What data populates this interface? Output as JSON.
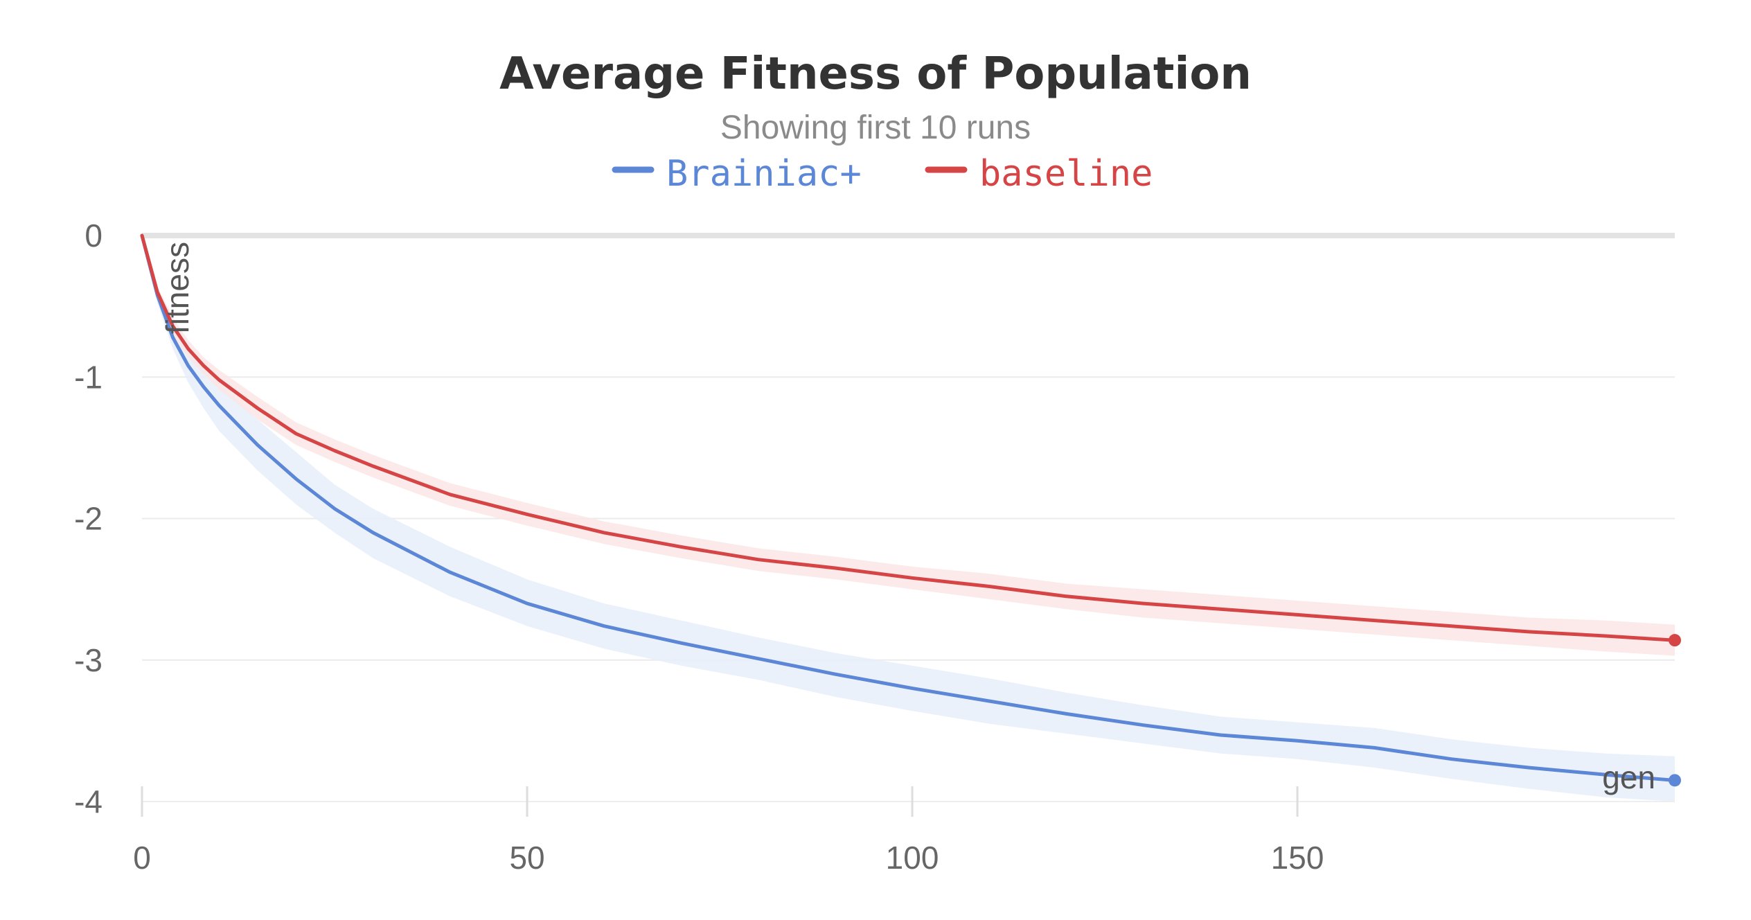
{
  "chart_data": {
    "type": "line",
    "title": "Average Fitness of Population",
    "subtitle": "Showing first 10 runs",
    "xlabel": "gen",
    "ylabel": "fitness",
    "xlim": [
      0,
      199
    ],
    "ylim": [
      -4,
      0
    ],
    "x_ticks": [
      0,
      50,
      100,
      150
    ],
    "y_ticks": [
      0,
      -1,
      -2,
      -3,
      -4
    ],
    "x_tick_labels": [
      "0",
      "50",
      "100",
      "150"
    ],
    "y_tick_labels": [
      "0",
      "-1",
      "-2",
      "-3",
      "-4"
    ],
    "grid": true,
    "legend_position": "top-center",
    "x": [
      0,
      2,
      4,
      6,
      8,
      10,
      15,
      20,
      25,
      30,
      40,
      50,
      60,
      70,
      80,
      90,
      100,
      110,
      120,
      130,
      140,
      150,
      160,
      170,
      180,
      190,
      199
    ],
    "series": [
      {
        "name": "Brainiac+",
        "color": "#5b87d6",
        "band_color": "#e8effa",
        "values": [
          0,
          -0.42,
          -0.72,
          -0.92,
          -1.07,
          -1.2,
          -1.48,
          -1.72,
          -1.93,
          -2.1,
          -2.38,
          -2.6,
          -2.76,
          -2.88,
          -2.99,
          -3.1,
          -3.2,
          -3.29,
          -3.38,
          -3.46,
          -3.53,
          -3.57,
          -3.62,
          -3.7,
          -3.76,
          -3.81,
          -3.85
        ],
        "lower": [
          0,
          -0.48,
          -0.8,
          -1.04,
          -1.22,
          -1.38,
          -1.66,
          -1.9,
          -2.1,
          -2.28,
          -2.55,
          -2.76,
          -2.92,
          -3.04,
          -3.14,
          -3.26,
          -3.36,
          -3.45,
          -3.52,
          -3.59,
          -3.66,
          -3.7,
          -3.76,
          -3.84,
          -3.91,
          -3.97,
          -4.0
        ],
        "upper": [
          0,
          -0.36,
          -0.63,
          -0.8,
          -0.93,
          -1.04,
          -1.3,
          -1.53,
          -1.76,
          -1.93,
          -2.2,
          -2.43,
          -2.6,
          -2.72,
          -2.84,
          -2.95,
          -3.04,
          -3.13,
          -3.23,
          -3.32,
          -3.4,
          -3.44,
          -3.48,
          -3.56,
          -3.62,
          -3.66,
          -3.68
        ]
      },
      {
        "name": "baseline",
        "color": "#d64545",
        "band_color": "#fbe6e6",
        "values": [
          0,
          -0.4,
          -0.64,
          -0.8,
          -0.92,
          -1.02,
          -1.22,
          -1.4,
          -1.52,
          -1.63,
          -1.83,
          -1.97,
          -2.1,
          -2.2,
          -2.29,
          -2.35,
          -2.42,
          -2.48,
          -2.55,
          -2.6,
          -2.64,
          -2.68,
          -2.72,
          -2.76,
          -2.8,
          -2.83,
          -2.86
        ],
        "lower": [
          0,
          -0.44,
          -0.7,
          -0.86,
          -0.98,
          -1.09,
          -1.3,
          -1.48,
          -1.6,
          -1.71,
          -1.91,
          -2.05,
          -2.18,
          -2.28,
          -2.37,
          -2.43,
          -2.5,
          -2.57,
          -2.64,
          -2.7,
          -2.74,
          -2.78,
          -2.82,
          -2.86,
          -2.9,
          -2.94,
          -2.97
        ],
        "upper": [
          0,
          -0.36,
          -0.58,
          -0.74,
          -0.86,
          -0.95,
          -1.14,
          -1.32,
          -1.44,
          -1.55,
          -1.75,
          -1.89,
          -2.02,
          -2.12,
          -2.21,
          -2.27,
          -2.34,
          -2.39,
          -2.46,
          -2.5,
          -2.54,
          -2.58,
          -2.62,
          -2.66,
          -2.7,
          -2.72,
          -2.75
        ]
      }
    ]
  }
}
